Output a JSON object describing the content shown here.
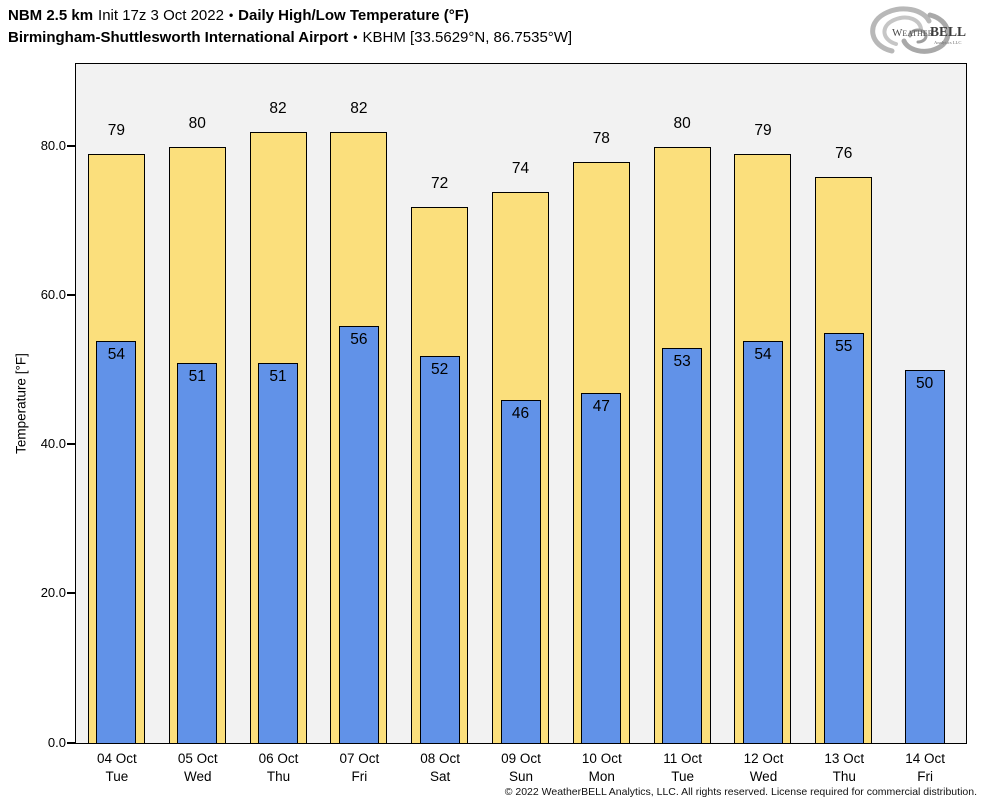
{
  "header": {
    "model": "NBM 2.5 km",
    "init": "Init 17z 3 Oct 2022",
    "separator": "•",
    "metric": "Daily High/Low Temperature (°F)",
    "station": "Birmingham-Shuttlesworth International Airport",
    "station_id": "KBHM [33.5629°N, 86.7535°W]",
    "logo": {
      "name_weather": "Weather",
      "name_bell": "BELL",
      "subtitle": "Analytics LLC"
    }
  },
  "chart_data": {
    "type": "bar",
    "title": "Daily High/Low Temperature (°F)",
    "xlabel": "",
    "ylabel": "Temperature [°F]",
    "ylim": [
      0,
      91
    ],
    "grid": false,
    "legend_position": "none",
    "plot_background": "#f2f2f2",
    "yticks": [
      {
        "value": 0,
        "label": "0.0"
      },
      {
        "value": 20,
        "label": "20.0"
      },
      {
        "value": 40,
        "label": "40.0"
      },
      {
        "value": 60,
        "label": "60.0"
      },
      {
        "value": 80,
        "label": "80.0"
      }
    ],
    "categories": [
      {
        "date": "04 Oct",
        "day": "Tue"
      },
      {
        "date": "05 Oct",
        "day": "Wed"
      },
      {
        "date": "06 Oct",
        "day": "Thu"
      },
      {
        "date": "07 Oct",
        "day": "Fri"
      },
      {
        "date": "08 Oct",
        "day": "Sat"
      },
      {
        "date": "09 Oct",
        "day": "Sun"
      },
      {
        "date": "10 Oct",
        "day": "Mon"
      },
      {
        "date": "11 Oct",
        "day": "Tue"
      },
      {
        "date": "12 Oct",
        "day": "Wed"
      },
      {
        "date": "13 Oct",
        "day": "Thu"
      },
      {
        "date": "14 Oct",
        "day": "Fri"
      }
    ],
    "series": [
      {
        "name": "High",
        "color": "#FBDF7C",
        "values": [
          79,
          80,
          82,
          82,
          72,
          74,
          78,
          80,
          79,
          76,
          null
        ]
      },
      {
        "name": "Low",
        "color": "#6192E8",
        "values": [
          54,
          51,
          51,
          56,
          52,
          46,
          47,
          53,
          54,
          55,
          50
        ]
      }
    ]
  },
  "footer": {
    "copyright": "© 2022 WeatherBELL Analytics, LLC. All rights reserved. License required for commercial distribution."
  },
  "colors": {
    "high_bar": "#FBDF7C",
    "low_bar": "#6192E8",
    "bar_outline": "#000000",
    "plot_background": "#f2f2f2",
    "page_background": "#ffffff",
    "text": "#000000"
  }
}
